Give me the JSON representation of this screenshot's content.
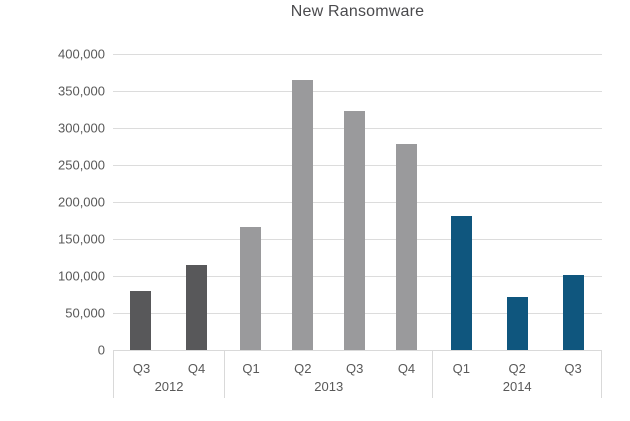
{
  "chart_data": {
    "type": "bar",
    "title": "New Ransomware",
    "xlabel": "",
    "ylabel": "",
    "ylim": [
      0,
      400000
    ],
    "ytick_step": 50000,
    "grid": true,
    "legend": "none",
    "categories": [
      "Q3 2012",
      "Q4 2012",
      "Q1 2013",
      "Q2 2013",
      "Q3 2013",
      "Q4 2013",
      "Q1 2014",
      "Q2 2014",
      "Q3 2014"
    ],
    "values": [
      80000,
      115000,
      166000,
      365000,
      323000,
      278000,
      181000,
      71000,
      101000
    ],
    "yticks": [
      {
        "value": 0,
        "label": "0"
      },
      {
        "value": 50000,
        "label": "50,000"
      },
      {
        "value": 100000,
        "label": "100,000"
      },
      {
        "value": 150000,
        "label": "150,000"
      },
      {
        "value": 200000,
        "label": "200,000"
      },
      {
        "value": 250000,
        "label": "250,000"
      },
      {
        "value": 300000,
        "label": "300,000"
      },
      {
        "value": 350000,
        "label": "350,000"
      },
      {
        "value": 400000,
        "label": "400,000"
      }
    ],
    "groups": [
      {
        "year": "2012",
        "color": "#58585a",
        "quarters": [
          "Q3",
          "Q4"
        ],
        "values": [
          80000,
          115000
        ]
      },
      {
        "year": "2013",
        "color": "#9a9a9c",
        "quarters": [
          "Q1",
          "Q2",
          "Q3",
          "Q4"
        ],
        "values": [
          166000,
          365000,
          323000,
          278000
        ]
      },
      {
        "year": "2014",
        "color": "#0f567e",
        "quarters": [
          "Q1",
          "Q2",
          "Q3"
        ],
        "values": [
          181000,
          71000,
          101000
        ]
      }
    ],
    "colors": {
      "bar_2012": "#58585a",
      "bar_2013": "#9a9a9c",
      "bar_2014": "#0f567e",
      "gridline": "#dcdcdc",
      "axis_line": "#d9d9d9",
      "title_text": "#4a4a4d",
      "tick_text": "#595959"
    }
  }
}
